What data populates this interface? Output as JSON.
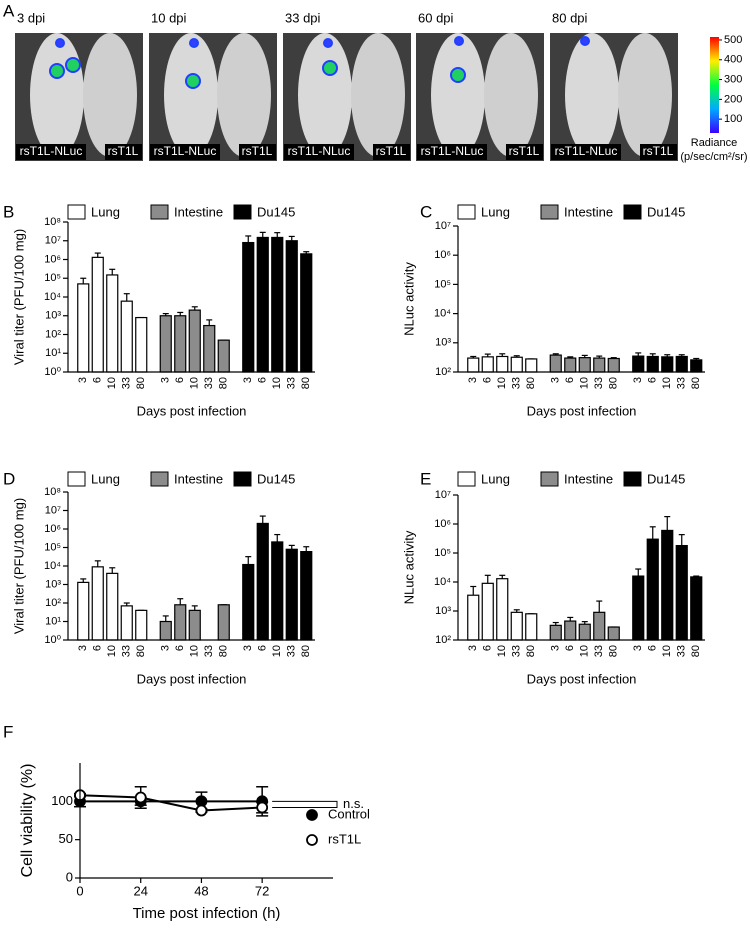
{
  "panel_a": {
    "label": "A",
    "images": [
      {
        "title": "3 dpi",
        "left": "rsT1L-NLuc",
        "right": "rsT1L"
      },
      {
        "title": "10 dpi",
        "left": "rsT1L-NLuc",
        "right": "rsT1L"
      },
      {
        "title": "33 dpi",
        "left": "rsT1L-NLuc",
        "right": "rsT1L"
      },
      {
        "title": "60 dpi",
        "left": "rsT1L-NLuc",
        "right": "rsT1L"
      },
      {
        "title": "80 dpi",
        "left": "rsT1L-NLuc",
        "right": "rsT1L"
      }
    ],
    "colorbar": {
      "title": "Radiance",
      "unit": "(p/sec/cm²/sr)",
      "lim": [
        30,
        515
      ],
      "ticks": [
        100,
        200,
        300,
        400,
        500
      ]
    }
  },
  "chart_data": [
    {
      "panel": "B",
      "type": "bar",
      "log_y": true,
      "ylabel": "Viral titer (PFU/100 mg)",
      "xlabel": "Days post infection",
      "categories": [
        "3",
        "6",
        "10",
        "33",
        "80"
      ],
      "ylim": [
        1,
        100000000
      ],
      "yticks": [
        {
          "value": 1,
          "label": "10⁰"
        },
        {
          "value": 10,
          "label": "10¹"
        },
        {
          "value": 100,
          "label": "10²"
        },
        {
          "value": 1000,
          "label": "10³"
        },
        {
          "value": 10000,
          "label": "10⁴"
        },
        {
          "value": 100000,
          "label": "10⁵"
        },
        {
          "value": 1000000,
          "label": "10⁶"
        },
        {
          "value": 10000000,
          "label": "10⁷"
        },
        {
          "value": 100000000,
          "label": "10⁸"
        }
      ],
      "series": [
        {
          "name": "Lung",
          "color": "#ffffff",
          "values": [
            50000,
            1300000,
            150000,
            6000,
            800
          ],
          "errors": [
            50000,
            900000,
            150000,
            9000,
            0
          ]
        },
        {
          "name": "Intestine",
          "color": "#8c8c8c",
          "values": [
            1000,
            1000,
            2000,
            300,
            50
          ],
          "errors": [
            300,
            500,
            1000,
            300,
            0
          ]
        },
        {
          "name": "Du145",
          "color": "#000000",
          "values": [
            8000000,
            15000000,
            15000000,
            10000000,
            2000000
          ],
          "errors": [
            10000000,
            13000000,
            12000000,
            7000000,
            600000
          ]
        }
      ]
    },
    {
      "panel": "C",
      "type": "bar",
      "log_y": true,
      "ylabel": "NLuc activity",
      "xlabel": "Days post infection",
      "categories": [
        "3",
        "6",
        "10",
        "33",
        "80"
      ],
      "ylim": [
        100,
        10000000
      ],
      "yticks": [
        {
          "value": 100,
          "label": "10²"
        },
        {
          "value": 1000,
          "label": "10³"
        },
        {
          "value": 10000,
          "label": "10⁴"
        },
        {
          "value": 100000,
          "label": "10⁵"
        },
        {
          "value": 1000000,
          "label": "10⁶"
        },
        {
          "value": 10000000,
          "label": "10⁷"
        }
      ],
      "series": [
        {
          "name": "Lung",
          "color": "#ffffff",
          "values": [
            300,
            330,
            340,
            320,
            280
          ],
          "errors": [
            40,
            80,
            80,
            40,
            0
          ]
        },
        {
          "name": "Intestine",
          "color": "#8c8c8c",
          "values": [
            380,
            300,
            310,
            300,
            290
          ],
          "errors": [
            40,
            30,
            60,
            50,
            20
          ]
        },
        {
          "name": "Du145",
          "color": "#000000",
          "values": [
            350,
            340,
            330,
            340,
            260
          ],
          "errors": [
            100,
            80,
            60,
            50,
            30
          ]
        }
      ]
    },
    {
      "panel": "D",
      "type": "bar",
      "log_y": true,
      "ylabel": "Viral titer (PFU/100 mg)",
      "xlabel": "Days post infection",
      "categories": [
        "3",
        "6",
        "10",
        "33",
        "80"
      ],
      "ylim": [
        1,
        100000000
      ],
      "yticks": [
        {
          "value": 1,
          "label": "10⁰"
        },
        {
          "value": 10,
          "label": "10¹"
        },
        {
          "value": 100,
          "label": "10²"
        },
        {
          "value": 1000,
          "label": "10³"
        },
        {
          "value": 10000,
          "label": "10⁴"
        },
        {
          "value": 100000,
          "label": "10⁵"
        },
        {
          "value": 1000000,
          "label": "10⁶"
        },
        {
          "value": 10000000,
          "label": "10⁷"
        },
        {
          "value": 100000000,
          "label": "10⁸"
        }
      ],
      "series": [
        {
          "name": "Lung",
          "color": "#ffffff",
          "values": [
            1300,
            9000,
            4000,
            70,
            40
          ],
          "errors": [
            700,
            10000,
            4000,
            30,
            0
          ]
        },
        {
          "name": "Intestine",
          "color": "#8c8c8c",
          "values": [
            10,
            80,
            40,
            null,
            80
          ],
          "errors": [
            10,
            90,
            30,
            null,
            0
          ]
        },
        {
          "name": "Du145",
          "color": "#000000",
          "values": [
            12000,
            2000000,
            200000,
            80000,
            60000
          ],
          "errors": [
            20000,
            3000000,
            300000,
            50000,
            50000
          ]
        }
      ]
    },
    {
      "panel": "E",
      "type": "bar",
      "log_y": true,
      "ylabel": "NLuc activity",
      "xlabel": "Days post infection",
      "categories": [
        "3",
        "6",
        "10",
        "33",
        "80"
      ],
      "ylim": [
        100,
        10000000
      ],
      "yticks": [
        {
          "value": 100,
          "label": "10²"
        },
        {
          "value": 1000,
          "label": "10³"
        },
        {
          "value": 10000,
          "label": "10⁴"
        },
        {
          "value": 100000,
          "label": "10⁵"
        },
        {
          "value": 1000000,
          "label": "10⁶"
        },
        {
          "value": 10000000,
          "label": "10⁷"
        }
      ],
      "series": [
        {
          "name": "Lung",
          "color": "#ffffff",
          "values": [
            3500,
            9000,
            13000,
            900,
            800
          ],
          "errors": [
            3500,
            8000,
            4000,
            200,
            0
          ]
        },
        {
          "name": "Intestine",
          "color": "#8c8c8c",
          "values": [
            320,
            450,
            350,
            900,
            280
          ],
          "errors": [
            80,
            150,
            80,
            1300,
            0
          ]
        },
        {
          "name": "Du145",
          "color": "#000000",
          "values": [
            16000,
            300000,
            600000,
            180000,
            15000
          ],
          "errors": [
            12000,
            500000,
            1200000,
            250000,
            1000
          ]
        }
      ]
    },
    {
      "panel": "F",
      "type": "line",
      "ylabel": "Cell viability (%)",
      "xlabel": "Time post infection (h)",
      "x": [
        0,
        24,
        48,
        72
      ],
      "xlim": [
        0,
        100
      ],
      "xticks": [
        0,
        24,
        48,
        72
      ],
      "ylim": [
        0,
        150
      ],
      "yticks": [
        0,
        50,
        100
      ],
      "annotation": "n.s.",
      "series": [
        {
          "name": "Control",
          "color": "#000000",
          "marker": "filled",
          "values": [
            100,
            100,
            100,
            100
          ],
          "errors": [
            7,
            5,
            12,
            19
          ]
        },
        {
          "name": "rsT1L",
          "color": "#000000",
          "marker": "open",
          "values": [
            108,
            105,
            88,
            92
          ],
          "errors": [
            2,
            14,
            2,
            7
          ]
        }
      ]
    }
  ]
}
